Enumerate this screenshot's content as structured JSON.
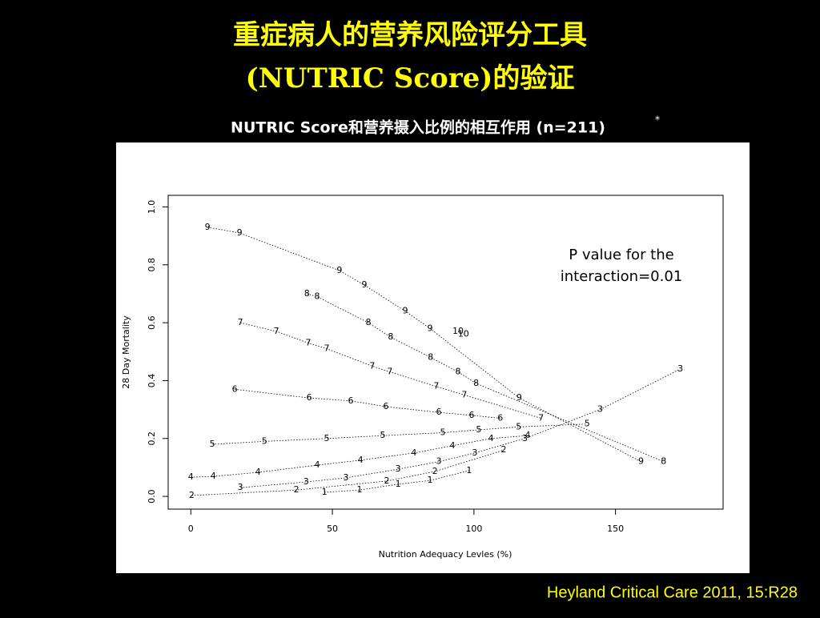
{
  "title_lines": [
    "重症病人的营养风险评分工具",
    "(NUTRIC Score)的验证"
  ],
  "subtitle": "NUTRIC Score和营养摄入比例的相互作用 (n=211)",
  "subtitle_mark": "*",
  "citation": "Heyland Critical Care 2011, 15:R28",
  "chart_data": {
    "type": "scatter",
    "xlabel": "Nutrition Adequacy Levles (%)",
    "ylabel": "28 Day Mortality",
    "annotation": [
      "P value for the",
      "interaction=0.01"
    ],
    "xlim": [
      -8,
      188
    ],
    "ylim": [
      -0.044,
      1.04
    ],
    "xticks": [
      0,
      50,
      100,
      150
    ],
    "yticks": [
      {
        "value": 0,
        "label": "0.0"
      },
      {
        "value": 0.2,
        "label": "0.2"
      },
      {
        "value": 0.4,
        "label": "0.4"
      },
      {
        "value": 0.6,
        "label": "0.6"
      },
      {
        "value": 0.8,
        "label": "0.8"
      },
      {
        "value": 1,
        "label": "1.0"
      }
    ],
    "series": [
      {
        "name": "10",
        "color": "#000000",
        "x": [
          94.4,
          96.3
        ],
        "values": [
          0.57,
          0.56
        ]
      },
      {
        "name": "9",
        "color": "#000000",
        "x": [
          5.9,
          17.2,
          52.5,
          61.3,
          75.7,
          84.5,
          116,
          159
        ],
        "values": [
          0.93,
          0.91,
          0.78,
          0.73,
          0.64,
          0.58,
          0.34,
          0.12
        ]
      },
      {
        "name": "8",
        "color": "#000000",
        "x": [
          41,
          44.6,
          62.7,
          70.6,
          84.7,
          94.4,
          100.8,
          167
        ],
        "values": [
          0.7,
          0.69,
          0.6,
          0.55,
          0.48,
          0.43,
          0.39,
          0.12
        ]
      },
      {
        "name": "7",
        "color": "#000000",
        "x": [
          17.5,
          30.2,
          41.5,
          48,
          64.1,
          70.3,
          86.7,
          96.6,
          123.7
        ],
        "values": [
          0.6,
          0.57,
          0.53,
          0.51,
          0.45,
          0.43,
          0.38,
          0.35,
          0.27
        ]
      },
      {
        "name": "6",
        "color": "#000000",
        "x": [
          15.5,
          41.8,
          56.5,
          68.9,
          87.6,
          99.2,
          109.3
        ],
        "values": [
          0.37,
          0.34,
          0.33,
          0.31,
          0.29,
          0.28,
          0.27
        ]
      },
      {
        "name": "5",
        "color": "#000000",
        "x": [
          7.6,
          26,
          48,
          67.8,
          89,
          101.7,
          115.8,
          140
        ],
        "values": [
          0.18,
          0.19,
          0.2,
          0.21,
          0.22,
          0.23,
          0.24,
          0.25
        ]
      },
      {
        "name": "4",
        "color": "#000000",
        "x": [
          0,
          7.9,
          23.7,
          44.6,
          59.9,
          78.8,
          92.4,
          106,
          119
        ],
        "values": [
          0.066,
          0.069,
          0.083,
          0.108,
          0.125,
          0.15,
          0.175,
          0.2,
          0.21
        ]
      },
      {
        "name": "3",
        "color": "#000000",
        "x": [
          17.5,
          40.7,
          54.8,
          73.2,
          87.6,
          100.3,
          118,
          144.6,
          172.9
        ],
        "values": [
          0.03,
          0.05,
          0.064,
          0.094,
          0.12,
          0.15,
          0.2,
          0.3,
          0.44
        ]
      },
      {
        "name": "2",
        "color": "#000000",
        "x": [
          0.3,
          37.3,
          69.2,
          86.2,
          110.5
        ],
        "values": [
          0.003,
          0.022,
          0.053,
          0.086,
          0.16
        ]
      },
      {
        "name": "1",
        "color": "#000000",
        "x": [
          47.2,
          59.6,
          73.2,
          84.5,
          98.3
        ],
        "values": [
          0.014,
          0.022,
          0.042,
          0.055,
          0.089
        ]
      }
    ]
  }
}
